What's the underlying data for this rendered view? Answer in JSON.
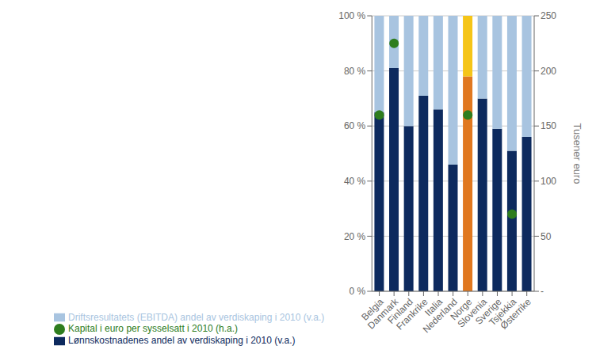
{
  "chart_data": {
    "type": "bar",
    "stacked": true,
    "grid": true,
    "legend": "bottom",
    "categories": [
      "Belgia",
      "Danmark",
      "Finland",
      "Frankrike",
      "Italia",
      "Nederland",
      "Norge",
      "Slovenia",
      "Sverige",
      "Tsjekkia",
      "Østerrike"
    ],
    "series": [
      {
        "name": "Lønnskostnadenes andel av verdiskaping i 2010 (v.a.)",
        "type": "bar",
        "color": "#0D2A5E",
        "colors": [
          "#0D2A5E",
          "#0D2A5E",
          "#0D2A5E",
          "#0D2A5E",
          "#0D2A5E",
          "#0D2A5E",
          "#E07820",
          "#0D2A5E",
          "#0D2A5E",
          "#0D2A5E",
          "#0D2A5E"
        ],
        "values": [
          0.65,
          0.81,
          0.6,
          0.71,
          0.66,
          0.46,
          0.78,
          0.7,
          0.59,
          0.51,
          0.56
        ]
      },
      {
        "name": "Driftsresultatets (EBITDA) andel av verdiskaping i 2010 (v.a.)",
        "type": "bar",
        "color": "#A8C4E0",
        "colors": [
          "#A8C4E0",
          "#A8C4E0",
          "#A8C4E0",
          "#A8C4E0",
          "#A8C4E0",
          "#A8C4E0",
          "#F5C518",
          "#A8C4E0",
          "#A8C4E0",
          "#A8C4E0",
          "#A8C4E0"
        ],
        "values": [
          0.35,
          0.19,
          0.4,
          0.29,
          0.34,
          0.54,
          0.22,
          0.3,
          0.41,
          0.49,
          0.44
        ]
      },
      {
        "name": "Kapital i euro per sysselsatt i 2010 (h.a.)",
        "type": "scatter",
        "axis": "y2",
        "color": "#2E7D1E",
        "values": [
          160,
          225,
          null,
          null,
          null,
          null,
          160,
          null,
          null,
          70,
          null
        ]
      }
    ],
    "ylim": [
      0,
      1.0
    ],
    "yticks": [
      {
        "value": 0.0,
        "label": "0 %"
      },
      {
        "value": 0.2,
        "label": "20 %"
      },
      {
        "value": 0.4,
        "label": "40 %"
      },
      {
        "value": 0.6,
        "label": "60 %"
      },
      {
        "value": 0.8,
        "label": "80 %"
      },
      {
        "value": 1.0,
        "label": "100 %"
      }
    ],
    "y2lim": [
      0,
      250
    ],
    "y2ticks": [
      {
        "value": 0,
        "label": "-"
      },
      50,
      100,
      150,
      200,
      250
    ],
    "y2label": "Tusener euro"
  }
}
